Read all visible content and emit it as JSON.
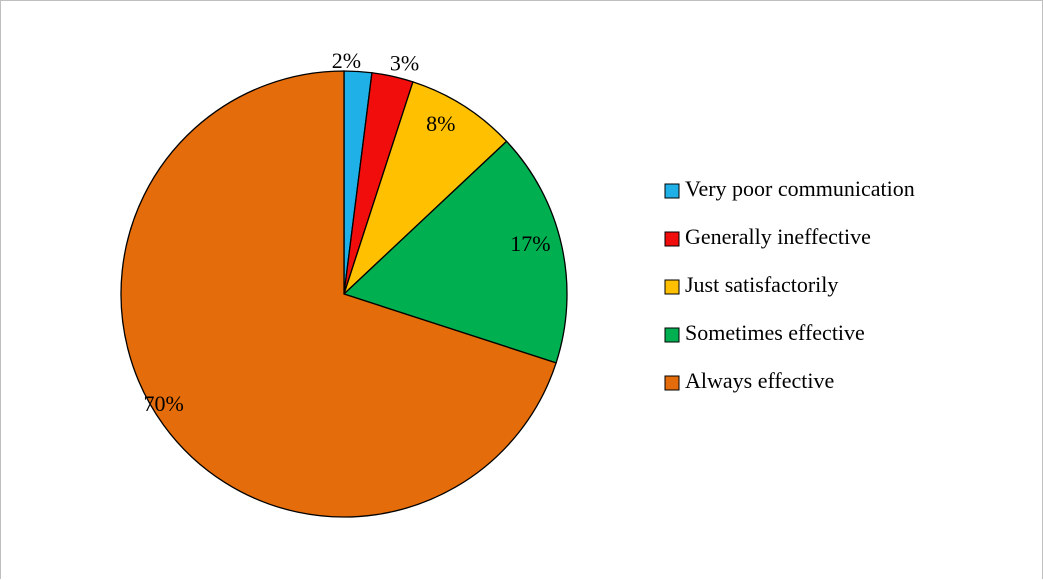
{
  "chart_data": {
    "type": "pie",
    "title": "",
    "start_angle_deg": 0,
    "direction": "clockwise",
    "legend_position": "right",
    "slices": [
      {
        "label": "Very poor communication",
        "value": 2,
        "display": "2%",
        "color": "#1FB0E8"
      },
      {
        "label": "Generally ineffective",
        "value": 3,
        "display": "3%",
        "color": "#F20D0D"
      },
      {
        "label": "Just satisfactorily",
        "value": 8,
        "display": "8%",
        "color": "#FFC000"
      },
      {
        "label": "Sometimes effective",
        "value": 17,
        "display": "17%",
        "color": "#00B050"
      },
      {
        "label": "Always effective",
        "value": 70,
        "display": "70%",
        "color": "#E46C0A"
      }
    ]
  }
}
